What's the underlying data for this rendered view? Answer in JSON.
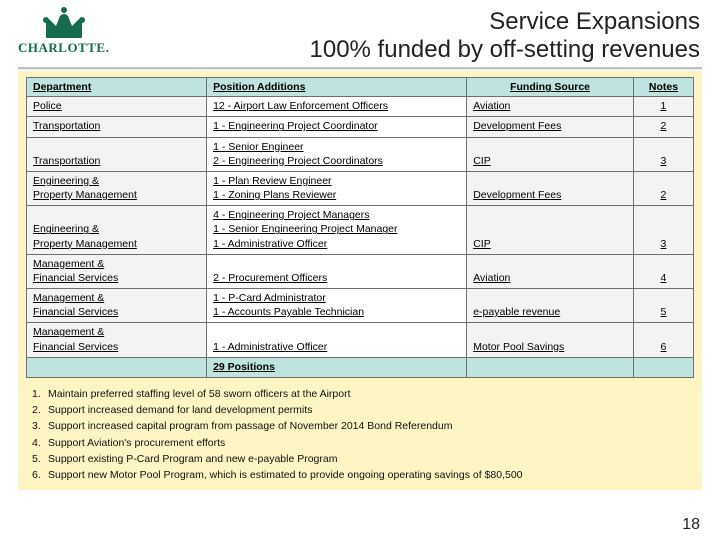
{
  "logo": {
    "text": "CHARLOTTE.",
    "color": "#156b4b"
  },
  "title": {
    "line1": "Service Expansions",
    "line2": "100% funded by off-setting revenues"
  },
  "table": {
    "headers": {
      "dept": "Department",
      "pos": "Position Additions",
      "src": "Funding Source",
      "notes": "Notes"
    },
    "rows": [
      {
        "dept": "Police",
        "pos": "12 - Airport Law Enforcement Officers",
        "src": "Aviation",
        "note": "1"
      },
      {
        "dept": "Transportation",
        "pos": " 1 - Engineering Project Coordinator",
        "src": "Development Fees",
        "note": "2"
      },
      {
        "dept": "Transportation",
        "pos": "1 - Senior Engineer\n2 - Engineering Project Coordinators",
        "src": "CIP",
        "note": "3"
      },
      {
        "dept": "Engineering & Property Management",
        "pos": "1 - Plan Review Engineer\n1 - Zoning Plans Reviewer",
        "src": "Development Fees",
        "note": "2"
      },
      {
        "dept": "Engineering & Property Management",
        "pos": "4 - Engineering Project Managers\n1 - Senior Engineering Project Manager\n1 - Administrative Officer",
        "src": "CIP",
        "note": "3"
      },
      {
        "dept": "Management & Financial Services",
        "pos": " 2 - Procurement Officers",
        "src": "Aviation",
        "note": "4"
      },
      {
        "dept": "Management & Financial Services",
        "pos": "1 - P-Card Administrator\n1 - Accounts Payable Technician",
        "src": "e-payable revenue",
        "note": "5"
      },
      {
        "dept": "Management & Financial Services",
        "pos": " 1 - Administrative Officer",
        "src": "Motor Pool Savings",
        "note": "6"
      }
    ],
    "total": {
      "label": "29 Positions"
    }
  },
  "notes": [
    "Maintain preferred staffing level of 58 sworn officers at the Airport",
    "Support increased demand for land development permits",
    "Support increased capital program from passage of November 2014 Bond Referendum",
    "Support Aviation's procurement efforts",
    "Support existing P-Card Program and new e-payable Program",
    "Support new Motor Pool Program, which is estimated to provide ongoing operating savings of $80,500"
  ],
  "page_number": "18",
  "colors": {
    "header_bg": "#bfe4df",
    "content_bg": "#fdf6c4",
    "cell_gray": "#f3f3f3",
    "border": "#6f6f6f"
  }
}
